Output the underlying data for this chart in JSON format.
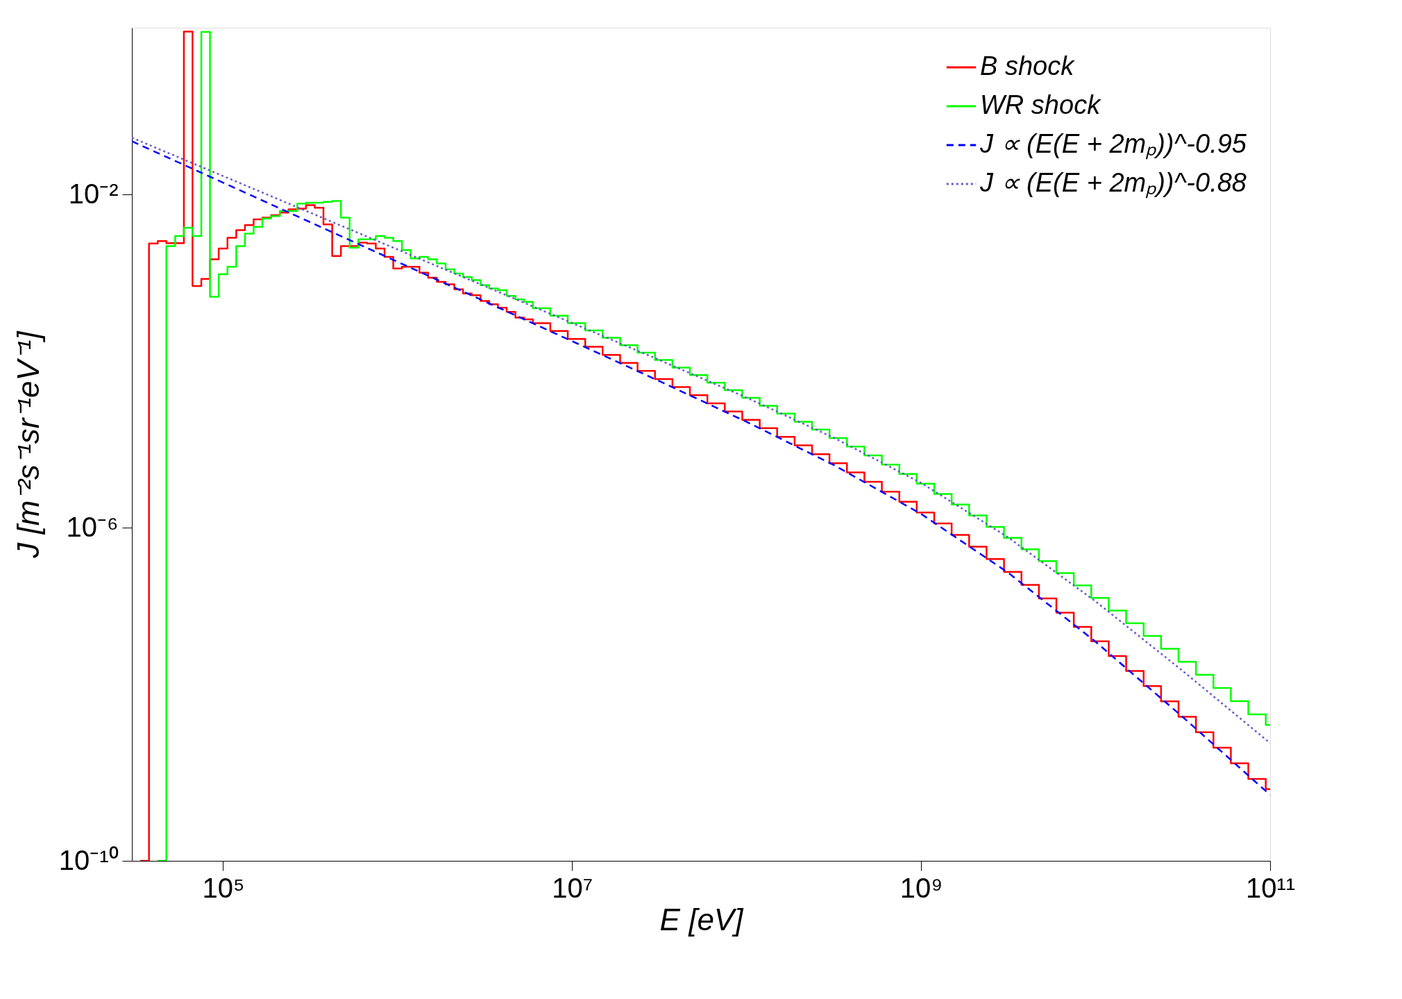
{
  "chart_data": {
    "type": "step",
    "xlabel": "E  [eV]",
    "ylabel": "J  [m⁻²s⁻¹sr⁻¹eV⁻¹]",
    "log": "xy",
    "grid": false,
    "legend": "top right",
    "marker": "none",
    "xlim": [
      30000,
      100000000000
    ],
    "ylim": [
      1e-10,
      1
    ],
    "xticks": [
      {
        "value": 100000,
        "label": "10⁵"
      },
      {
        "value": 10000000,
        "label": "10⁷"
      },
      {
        "value": 1000000000,
        "label": "10⁹"
      },
      {
        "value": 100000000000,
        "label": "10¹¹"
      }
    ],
    "yticks": [
      {
        "value": 1e-10,
        "label": "10⁻¹⁰"
      },
      {
        "value": 1e-06,
        "label": "10⁻⁶"
      },
      {
        "value": 0.01,
        "label": "10⁻²"
      }
    ],
    "series": [
      {
        "name": "B shock",
        "type": "step",
        "color": "#ff0000",
        "line_style": "solid",
        "x": [
          33500,
          37600,
          42200,
          47300,
          53100,
          59600,
          66800,
          75000,
          84100,
          94400,
          105900,
          118900,
          133400,
          149600,
          167900,
          188400,
          211300,
          237100,
          266100,
          298500,
          335000,
          375800,
          421700,
          473200,
          530900,
          595700,
          668300,
          749900,
          841400,
          944100,
          1059000,
          1189000,
          1334000,
          1496000,
          1679000,
          1884000,
          2113000,
          2371000,
          2661000,
          2985000,
          3350000,
          3758000,
          4217000,
          4732000,
          5309000,
          5957000,
          7499000,
          9441000,
          11890000,
          14960000,
          18840000,
          23710000,
          29850000,
          37580000,
          47320000,
          59570000,
          74990000,
          94410000,
          118900000,
          149600000,
          188400000,
          237100000,
          298500000,
          375800000,
          473200000,
          595700000,
          749900000,
          944100000,
          1189000000,
          1496000000,
          1884000000,
          2371000000,
          2985000000,
          3758000000,
          4732000000,
          5957000000,
          7499000000,
          9441000000,
          11890000000,
          14960000000,
          18840000000,
          23710000000,
          29850000000,
          37580000000,
          47320000000,
          59570000000,
          74990000000,
          94410000000,
          100000000000
        ],
        "values": [
          1e-10,
          0.00257,
          0.00275,
          0.0026,
          0.0026,
          0.902,
          0.000794,
          0.000966,
          0.00166,
          0.00224,
          0.00302,
          0.00372,
          0.00427,
          0.00501,
          0.00525,
          0.00562,
          0.00603,
          0.00661,
          0.00676,
          0.00741,
          0.00692,
          0.00437,
          0.00182,
          0.0024,
          0.0024,
          0.00263,
          0.00257,
          0.00224,
          0.00178,
          0.00129,
          0.00135,
          0.00135,
          0.00115,
          0.001,
          0.000891,
          0.000832,
          0.000724,
          0.000646,
          0.000617,
          0.000525,
          0.000479,
          0.000437,
          0.000389,
          0.000331,
          0.000316,
          0.000285,
          0.000229,
          0.000184,
          0.000148,
          0.000118,
          9.48e-05,
          7.6e-05,
          6.08e-05,
          4.86e-05,
          3.89e-05,
          3.1e-05,
          2.48e-05,
          1.97e-05,
          1.56e-05,
          1.23e-05,
          9.73e-06,
          7.62e-06,
          5.94e-06,
          4.6e-06,
          3.54e-06,
          2.7e-06,
          2.04e-06,
          1.52e-06,
          1.12e-06,
          8.18e-07,
          5.89e-07,
          4.19e-07,
          2.94e-07,
          2.05e-07,
          1.41e-07,
          9.55e-08,
          6.44e-08,
          4.32e-08,
          2.87e-08,
          1.9e-08,
          1.25e-08,
          8.2e-09,
          5.37e-09,
          3.5e-09,
          2.28e-09,
          1.48e-09,
          9.62e-10,
          7.24e-10,
          7.24e-10
        ]
      },
      {
        "name": "WR shock",
        "type": "step",
        "color": "#00ff00",
        "line_style": "solid",
        "x": [
          42200,
          47300,
          53100,
          59600,
          66800,
          75000,
          84100,
          94400,
          105900,
          118900,
          133400,
          149600,
          167900,
          188400,
          211300,
          237100,
          266100,
          298500,
          335000,
          375800,
          421700,
          473200,
          530900,
          595700,
          668300,
          749900,
          841400,
          944100,
          1059000,
          1189000,
          1334000,
          1496000,
          1679000,
          1884000,
          2113000,
          2371000,
          2661000,
          2985000,
          3350000,
          3758000,
          4217000,
          4732000,
          5309000,
          5957000,
          7499000,
          9441000,
          11890000,
          14960000,
          18840000,
          23710000,
          29850000,
          37580000,
          47320000,
          59570000,
          74990000,
          94410000,
          118900000,
          149600000,
          188400000,
          237100000,
          298500000,
          375800000,
          473200000,
          595700000,
          749900000,
          944100000,
          1189000000,
          1496000000,
          1884000000,
          2371000000,
          2985000000,
          3758000000,
          4732000000,
          5957000000,
          7499000000,
          9441000000,
          11890000000,
          14960000000,
          18840000000,
          23710000000,
          29850000000,
          37580000000,
          47320000000,
          59570000000,
          74990000000,
          94410000000,
          100000000000
        ],
        "values": [
          1e-10,
          0.0024,
          0.00316,
          0.00398,
          0.00316,
          0.891,
          0.000589,
          0.0011,
          0.00135,
          0.0024,
          0.00339,
          0.00407,
          0.00513,
          0.0055,
          0.00631,
          0.00631,
          0.00776,
          0.00794,
          0.00794,
          0.00813,
          0.00832,
          0.00525,
          0.00229,
          0.00288,
          0.00288,
          0.00316,
          0.00302,
          0.00275,
          0.00214,
          0.0017,
          0.00178,
          0.00166,
          0.00148,
          0.00126,
          0.00112,
          0.00102,
          0.000933,
          0.000813,
          0.000741,
          0.000708,
          0.000603,
          0.00055,
          0.000513,
          0.000429,
          0.00035,
          0.000285,
          0.000233,
          0.00019,
          0.000155,
          0.000126,
          0.000103,
          8.34e-05,
          6.78e-05,
          5.5e-05,
          4.46e-05,
          3.61e-05,
          2.9e-05,
          2.34e-05,
          1.87e-05,
          1.5e-05,
          1.19e-05,
          9.38e-06,
          7.35e-06,
          5.71e-06,
          4.41e-06,
          3.36e-06,
          2.54e-06,
          1.89e-06,
          1.4e-06,
          1.02e-06,
          7.52e-07,
          5.48e-07,
          3.96e-07,
          2.84e-07,
          2.02e-07,
          1.43e-07,
          1.01e-07,
          7.13e-08,
          5.01e-08,
          3.52e-08,
          2.45e-08,
          1.71e-08,
          1.19e-08,
          8.26e-09,
          5.74e-09,
          4.27e-09,
          4.27e-09
        ]
      },
      {
        "name": "J ∝ (E(E + 2mₚ))^-0.95",
        "type": "line",
        "color": "#0000ff",
        "line_style": "dashed",
        "x": [
          30000,
          100000,
          316000,
          1000000,
          3160000,
          10000000,
          31600000,
          100000000,
          316000000,
          1000000000,
          3160000000,
          10000000000,
          31600000000,
          100000000000
        ],
        "values": [
          0.0434,
          0.01384,
          0.00463,
          0.00155,
          0.000519,
          0.000173,
          5.74e-05,
          1.86e-05,
          5.64e-06,
          1.46e-06,
          2.87e-07,
          4.26e-08,
          5.32e-09,
          6.19e-10
        ]
      },
      {
        "name": "J ∝ (E(E + 2mₚ))^-0.88",
        "type": "line",
        "color": "#6a5acd",
        "line_style": "dotted",
        "x": [
          30000,
          100000,
          316000,
          1000000,
          3160000,
          10000000,
          31600000,
          100000000,
          316000000,
          1000000000,
          3160000000,
          10000000000,
          31600000000,
          100000000000
        ],
        "values": [
          0.0479,
          0.0166,
          0.00603,
          0.00218,
          0.000792,
          0.000286,
          0.000103,
          3.63e-05,
          1.2e-05,
          3.44e-06,
          7.62e-07,
          1.3e-07,
          1.9e-08,
          2.59e-09
        ]
      }
    ]
  }
}
